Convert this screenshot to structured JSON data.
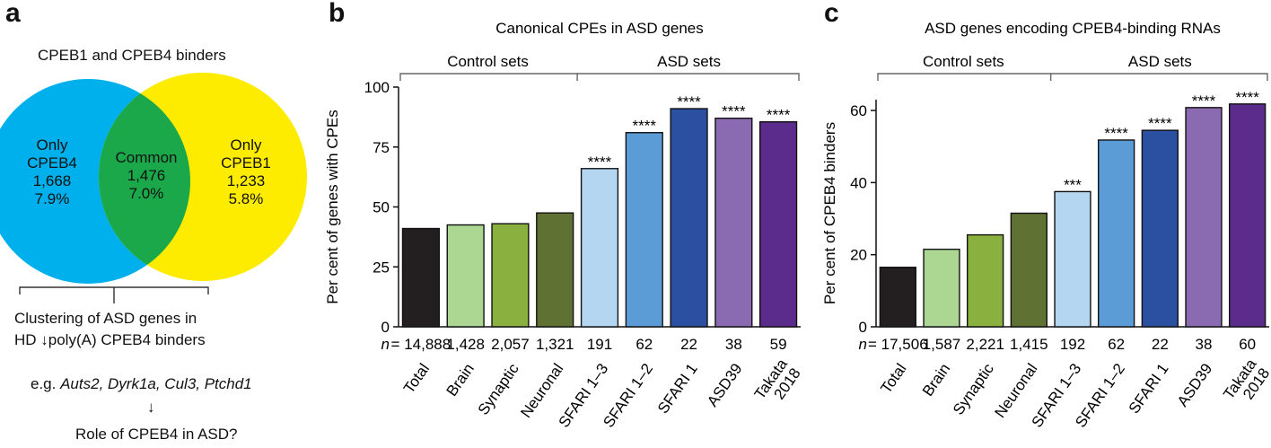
{
  "panels": {
    "a": {
      "letter": "a",
      "title": "CPEB1 and CPEB4 binders",
      "left": {
        "l1": "Only",
        "l2": "CPEB4",
        "count": "1,668",
        "pct": "7.9%"
      },
      "common": {
        "l1": "Common",
        "count": "1,476",
        "pct": "7.0%"
      },
      "right": {
        "l1": "Only",
        "l2": "CPEB1",
        "count": "1,233",
        "pct": "5.8%"
      },
      "colors": {
        "left": "#00b0ec",
        "common": "#1aa84a",
        "right": "#fdeb00"
      },
      "caption1": "Clustering of ASD genes in",
      "caption2": "HD ↓poly(A) CPEB4 binders",
      "eg_prefix": "e.g. ",
      "eg_genes": "Auts2, Dyrk1a, Cul3, Ptchd1",
      "arrow": "↓",
      "question": "Role of CPEB4 in ASD?"
    },
    "b": {
      "letter": "b"
    },
    "c": {
      "letter": "c"
    }
  },
  "chart_data": [
    {
      "type": "bar",
      "title": "Canonical CPEs in ASD genes",
      "ylabel": "Per cent of genes with CPEs",
      "ylim": [
        0,
        100
      ],
      "yticks": [
        0,
        25,
        50,
        75,
        100
      ],
      "group_labels": [
        "Control sets",
        "ASD sets"
      ],
      "categories": [
        "Total",
        "Brain",
        "Synaptic",
        "Neuronal",
        "SFARI 1–3",
        "SFARI 1–2",
        "SFARI 1",
        "ASD39",
        "Takata 2018"
      ],
      "values": [
        41,
        42.5,
        43,
        47.5,
        66,
        81,
        91,
        87,
        85.5
      ],
      "significance": [
        "",
        "",
        "",
        "",
        "****",
        "****",
        "****",
        "****",
        "****"
      ],
      "n_prefix": "n",
      "n_values": [
        "= 14,888",
        "1,428",
        "2,057",
        "1,321",
        "191",
        "62",
        "22",
        "38",
        "59"
      ],
      "colors": [
        "#231f20",
        "#acd793",
        "#8ab13f",
        "#5f7233",
        "#b5d6f1",
        "#5b9bd6",
        "#2b4fa1",
        "#8a6bb2",
        "#5b2c8c"
      ]
    },
    {
      "type": "bar",
      "title": "ASD genes encoding CPEB4-binding RNAs",
      "ylabel": "Per cent of CPEB4 binders",
      "ylim": [
        0,
        63
      ],
      "yticks": [
        0,
        20,
        40,
        60
      ],
      "group_labels": [
        "Control sets",
        "ASD sets"
      ],
      "categories": [
        "Total",
        "Brain",
        "Synaptic",
        "Neuronal",
        "SFARI 1–3",
        "SFARI 1–2",
        "SFARI 1",
        "ASD39",
        "Takata 2018"
      ],
      "values": [
        16.5,
        21.5,
        25.5,
        31.5,
        37.5,
        51.8,
        54.5,
        60.8,
        61.8
      ],
      "significance": [
        "",
        "",
        "",
        "",
        "***",
        "****",
        "****",
        "****",
        "****"
      ],
      "n_prefix": "n",
      "n_values": [
        "= 17,506",
        "1,587",
        "2,221",
        "1,415",
        "192",
        "62",
        "22",
        "38",
        "60"
      ],
      "colors": [
        "#231f20",
        "#acd793",
        "#8ab13f",
        "#5f7233",
        "#b5d6f1",
        "#5b9bd6",
        "#2b4fa1",
        "#8a6bb2",
        "#5b2c8c"
      ]
    }
  ]
}
